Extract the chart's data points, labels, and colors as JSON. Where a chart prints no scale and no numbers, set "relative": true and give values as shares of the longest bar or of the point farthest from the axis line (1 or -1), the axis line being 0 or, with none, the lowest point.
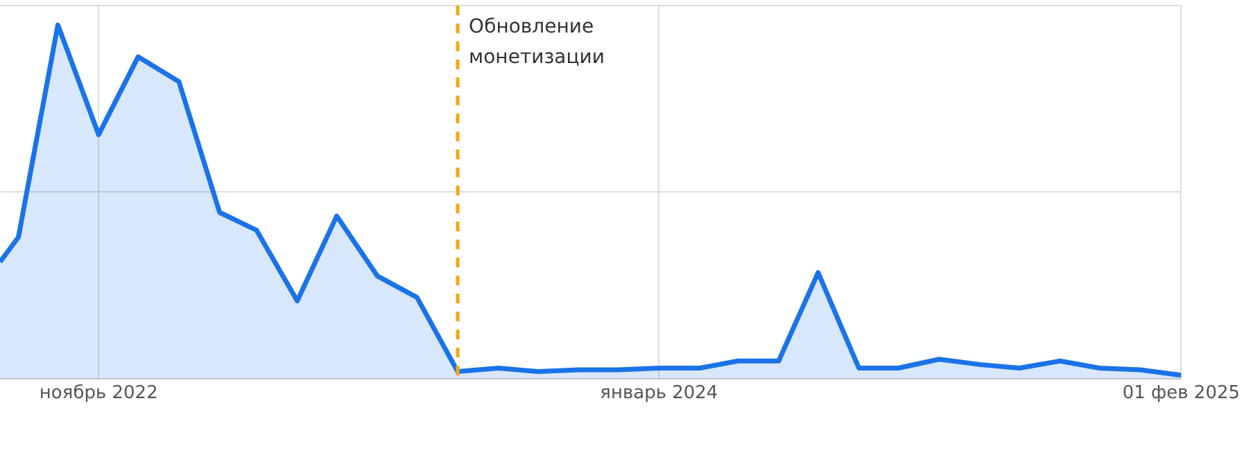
{
  "chart_data": {
    "type": "area",
    "relative": true,
    "color": "#1a73e8",
    "marker": "none",
    "grid": true,
    "x": [
      "2022-08-18",
      "2022-09",
      "2022-10",
      "2022-11",
      "2022-12",
      "2023-01",
      "2023-02",
      "2023-03",
      "2023-04",
      "2023-05",
      "2023-06",
      "2023-07",
      "2023-08",
      "2023-09",
      "2023-10",
      "2023-11",
      "2023-12",
      "2024-01",
      "2024-02",
      "2024-03",
      "2024-04",
      "2024-05",
      "2024-06",
      "2024-07",
      "2024-08",
      "2024-09",
      "2024-10",
      "2024-11",
      "2024-12",
      "2025-01",
      "2025-02-01"
    ],
    "values": [
      0.33,
      0.4,
      1,
      0.69,
      0.91,
      0.84,
      0.47,
      0.42,
      0.22,
      0.46,
      0.29,
      0.23,
      0.02,
      0.03,
      0.02,
      0.025,
      0.025,
      0.03,
      0.03,
      0.05,
      0.05,
      0.3,
      0.03,
      0.03,
      0.055,
      0.04,
      0.03,
      0.05,
      0.03,
      0.025,
      0.01
    ],
    "xlim": [
      "2022-08-18",
      "2025-02-01"
    ],
    "xticks": [
      {
        "value": "2022-11",
        "label": "ноябрь 2022"
      },
      {
        "value": "2024-01",
        "label": "январь 2024"
      },
      {
        "value": "2025-02-01",
        "label": "01 фев 2025"
      }
    ],
    "ref_lines": [
      {
        "axis": "x",
        "value": "2023-08",
        "label": "Обновление монетизации",
        "color": "#f0a818",
        "line_style": "dashed"
      }
    ]
  }
}
